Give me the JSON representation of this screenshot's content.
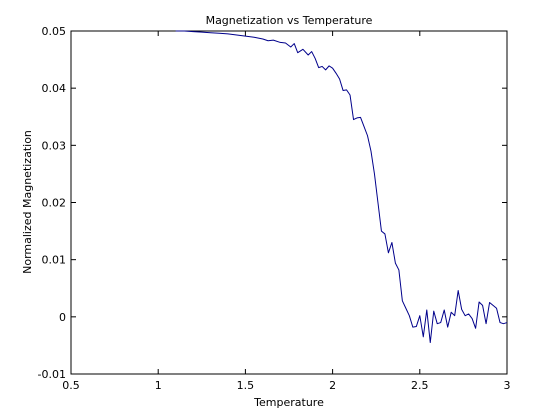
{
  "chart_data": {
    "type": "line",
    "title": "Magnetization vs Temperature",
    "xlabel": "Temperature",
    "ylabel": "Normalized Magnetization",
    "xlim": [
      0.5,
      3
    ],
    "ylim": [
      -0.01,
      0.05
    ],
    "xticks": [
      "0.5",
      "1",
      "1.5",
      "2",
      "2.5",
      "3"
    ],
    "yticks": [
      "-0.01",
      "0",
      "0.01",
      "0.02",
      "0.03",
      "0.04",
      "0.05"
    ],
    "grid": false,
    "legend": "none",
    "line_color": "#00008b",
    "series": [
      {
        "x": [
          1.1,
          1.15,
          1.2,
          1.25,
          1.3,
          1.35,
          1.4,
          1.45,
          1.5,
          1.55,
          1.6,
          1.63,
          1.66,
          1.7,
          1.73,
          1.76,
          1.78,
          1.8,
          1.83,
          1.86,
          1.88,
          1.9,
          1.92,
          1.94,
          1.96,
          1.98,
          2.0,
          2.02,
          2.04,
          2.06,
          2.08,
          2.1,
          2.12,
          2.14,
          2.16,
          2.18,
          2.2,
          2.22,
          2.24,
          2.26,
          2.28,
          2.3,
          2.32,
          2.34,
          2.36,
          2.38,
          2.4,
          2.42,
          2.44,
          2.46,
          2.48,
          2.5,
          2.52,
          2.54,
          2.56,
          2.58,
          2.6,
          2.62,
          2.64,
          2.66,
          2.68,
          2.7,
          2.72,
          2.74,
          2.76,
          2.78,
          2.8,
          2.82,
          2.84,
          2.86,
          2.88,
          2.9,
          2.92,
          2.94,
          2.96,
          2.98,
          3.0
        ],
        "y": [
          0.05,
          0.05,
          0.0499,
          0.0498,
          0.0497,
          0.0496,
          0.0495,
          0.0493,
          0.0491,
          0.0489,
          0.0486,
          0.0483,
          0.0484,
          0.048,
          0.0479,
          0.0472,
          0.0478,
          0.0462,
          0.0468,
          0.0458,
          0.0464,
          0.0452,
          0.0436,
          0.0438,
          0.0432,
          0.0439,
          0.0435,
          0.0426,
          0.0416,
          0.0396,
          0.0397,
          0.0388,
          0.0345,
          0.0348,
          0.0349,
          0.0333,
          0.0317,
          0.029,
          0.025,
          0.02,
          0.015,
          0.0145,
          0.0112,
          0.013,
          0.0094,
          0.0082,
          0.0028,
          0.0015,
          0.0002,
          -0.0018,
          -0.0017,
          0.0002,
          -0.0035,
          0.0012,
          -0.0045,
          0.001,
          -0.0012,
          -0.001,
          0.0012,
          -0.0018,
          0.0008,
          0.0002,
          0.0046,
          0.0013,
          0.0002,
          0.0005,
          -0.0003,
          -0.002,
          0.0026,
          0.002,
          -0.0012,
          0.0025,
          0.002,
          0.0015,
          -0.001,
          -0.0012,
          -0.001
        ]
      }
    ]
  }
}
